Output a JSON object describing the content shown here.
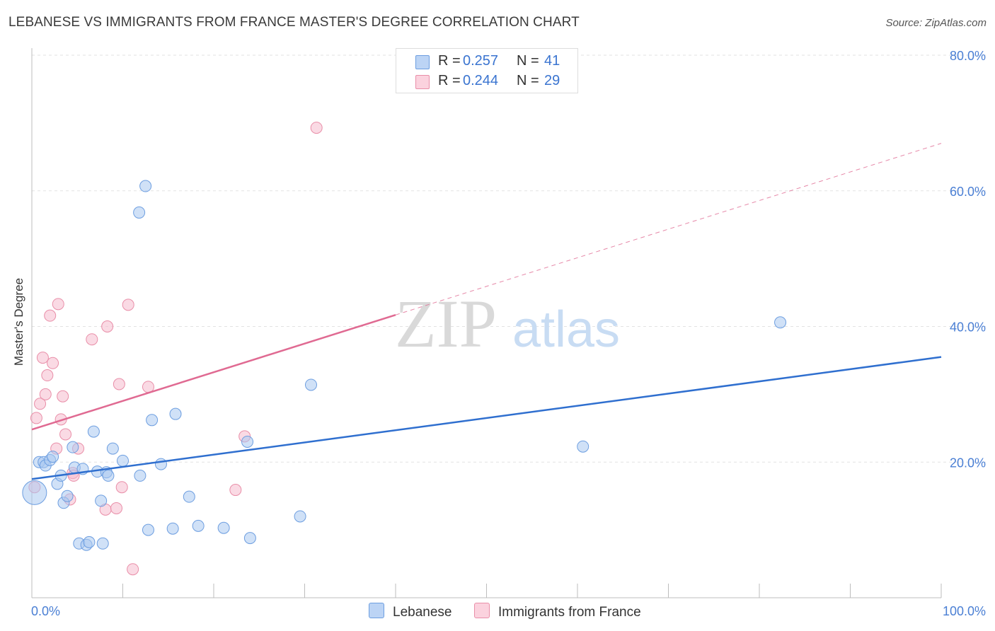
{
  "title": "LEBANESE VS IMMIGRANTS FROM FRANCE MASTER'S DEGREE CORRELATION CHART",
  "source": "Source: ZipAtlas.com",
  "watermark": {
    "zip": "ZIP",
    "atlas": "atlas"
  },
  "legend": {
    "rows": [
      {
        "r_label": "R =",
        "r_value": "0.257",
        "n_label": "N =",
        "n_value": "41"
      },
      {
        "r_label": "R =",
        "r_value": "0.244",
        "n_label": "N =",
        "n_value": "29"
      }
    ]
  },
  "bottom_legend": {
    "series1": "Lebanese",
    "series2": "Immigrants from France"
  },
  "colors": {
    "blue_fill": "#a9c8f0",
    "blue_stroke": "#6d9ee0",
    "blue_line": "#2f6fcf",
    "pink_fill": "#f6bccd",
    "pink_stroke": "#e98ea8",
    "pink_line": "#e06a92",
    "axis_text": "#4a7fd4"
  },
  "chart_data": {
    "type": "scatter",
    "title": "LEBANESE VS IMMIGRANTS FROM FRANCE MASTER'S DEGREE CORRELATION CHART",
    "xlabel": "",
    "ylabel": "Master's Degree",
    "xlim": [
      0,
      100
    ],
    "ylim": [
      0,
      80
    ],
    "x_tick_labels": [
      "0.0%",
      "100.0%"
    ],
    "y_ticks": [
      20,
      40,
      60,
      80
    ],
    "y_tick_labels": [
      "20.0%",
      "40.0%",
      "60.0%",
      "80.0%"
    ],
    "series": [
      {
        "name": "Lebanese",
        "r": 0.257,
        "n": 41,
        "trend": {
          "x": [
            0,
            100
          ],
          "y": [
            17.5,
            35.5
          ]
        },
        "points": [
          {
            "x": 0.3,
            "y": 15.5,
            "big": true
          },
          {
            "x": 0.8,
            "y": 20.0
          },
          {
            "x": 1.3,
            "y": 20.0
          },
          {
            "x": 1.5,
            "y": 19.5
          },
          {
            "x": 2.0,
            "y": 20.3
          },
          {
            "x": 2.3,
            "y": 20.8
          },
          {
            "x": 2.8,
            "y": 16.8
          },
          {
            "x": 3.2,
            "y": 18.0
          },
          {
            "x": 3.5,
            "y": 14.0
          },
          {
            "x": 3.9,
            "y": 15.0
          },
          {
            "x": 4.5,
            "y": 22.2
          },
          {
            "x": 4.7,
            "y": 19.2
          },
          {
            "x": 5.6,
            "y": 19.0
          },
          {
            "x": 5.2,
            "y": 8.0
          },
          {
            "x": 6.0,
            "y": 7.8
          },
          {
            "x": 6.3,
            "y": 8.2
          },
          {
            "x": 6.8,
            "y": 24.5
          },
          {
            "x": 7.2,
            "y": 18.6
          },
          {
            "x": 7.6,
            "y": 14.3
          },
          {
            "x": 7.8,
            "y": 8.0
          },
          {
            "x": 8.2,
            "y": 18.5
          },
          {
            "x": 8.4,
            "y": 18.0
          },
          {
            "x": 8.9,
            "y": 22.0
          },
          {
            "x": 10.0,
            "y": 20.2
          },
          {
            "x": 11.8,
            "y": 56.8
          },
          {
            "x": 11.9,
            "y": 18.0
          },
          {
            "x": 12.5,
            "y": 60.7
          },
          {
            "x": 12.8,
            "y": 10.0
          },
          {
            "x": 13.2,
            "y": 26.2
          },
          {
            "x": 14.2,
            "y": 19.7
          },
          {
            "x": 15.5,
            "y": 10.2
          },
          {
            "x": 15.8,
            "y": 27.1
          },
          {
            "x": 17.3,
            "y": 14.9
          },
          {
            "x": 18.3,
            "y": 10.6
          },
          {
            "x": 21.1,
            "y": 10.3
          },
          {
            "x": 23.7,
            "y": 23.0
          },
          {
            "x": 24.0,
            "y": 8.8
          },
          {
            "x": 29.5,
            "y": 12.0
          },
          {
            "x": 30.7,
            "y": 31.4
          },
          {
            "x": 60.6,
            "y": 22.3
          },
          {
            "x": 82.3,
            "y": 40.6
          }
        ]
      },
      {
        "name": "Immigrants from France",
        "r": 0.244,
        "n": 29,
        "trend": {
          "x": [
            0,
            40
          ],
          "y": [
            24.8,
            41.7
          ]
        },
        "trend_extension": {
          "x": [
            40,
            100
          ],
          "y": [
            41.7,
            67.0
          ]
        },
        "points": [
          {
            "x": 0.3,
            "y": 16.3
          },
          {
            "x": 0.5,
            "y": 26.5
          },
          {
            "x": 0.9,
            "y": 28.6
          },
          {
            "x": 1.2,
            "y": 35.4
          },
          {
            "x": 1.5,
            "y": 30.0
          },
          {
            "x": 1.7,
            "y": 32.8
          },
          {
            "x": 2.0,
            "y": 41.6
          },
          {
            "x": 2.3,
            "y": 34.6
          },
          {
            "x": 2.7,
            "y": 22.0
          },
          {
            "x": 2.9,
            "y": 43.3
          },
          {
            "x": 3.2,
            "y": 26.3
          },
          {
            "x": 3.4,
            "y": 29.7
          },
          {
            "x": 3.7,
            "y": 24.1
          },
          {
            "x": 4.2,
            "y": 14.5
          },
          {
            "x": 4.5,
            "y": 18.4
          },
          {
            "x": 4.6,
            "y": 18.0
          },
          {
            "x": 5.1,
            "y": 22.0
          },
          {
            "x": 6.6,
            "y": 38.1
          },
          {
            "x": 8.1,
            "y": 13.0
          },
          {
            "x": 8.3,
            "y": 40.0
          },
          {
            "x": 9.3,
            "y": 13.2
          },
          {
            "x": 9.6,
            "y": 31.5
          },
          {
            "x": 9.9,
            "y": 16.3
          },
          {
            "x": 10.6,
            "y": 43.2
          },
          {
            "x": 11.1,
            "y": 4.2
          },
          {
            "x": 12.8,
            "y": 31.1
          },
          {
            "x": 22.4,
            "y": 15.9
          },
          {
            "x": 23.4,
            "y": 23.8
          },
          {
            "x": 31.3,
            "y": 69.3
          }
        ]
      }
    ]
  }
}
